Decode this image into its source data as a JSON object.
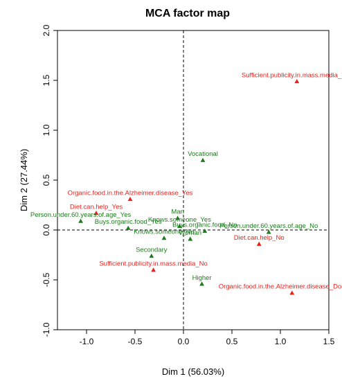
{
  "chart_data": {
    "type": "scatter",
    "title": "MCA factor map",
    "xlabel": "Dim 1 (56.03%)",
    "ylabel": "Dim 2 (27.44%)",
    "xlim": [
      -1.3,
      1.5
    ],
    "ylim": [
      -1.0,
      2.0
    ],
    "xticks": [
      "-1.0",
      "-0.5",
      "0.0",
      "0.5",
      "1.0",
      "1.5"
    ],
    "yticks": [
      "-1.0",
      "-0.5",
      "0.0",
      "0.5",
      "1.0",
      "1.5",
      "2.0"
    ],
    "grid": false,
    "reference_lines": {
      "x": 0,
      "y": 0,
      "style": "dashed"
    },
    "colors": {
      "red": "#e8211c",
      "green": "#1d7a1d"
    },
    "points": [
      {
        "label": "Sufficient.publicity.in.mass.media_Yes",
        "x": 1.17,
        "y": 1.49,
        "color": "red"
      },
      {
        "label": "Vocational",
        "x": 0.2,
        "y": 0.7,
        "color": "green"
      },
      {
        "label": "Organic.food.in.the.Alzheimer.disease_Yes",
        "x": -0.55,
        "y": 0.31,
        "color": "red"
      },
      {
        "label": "Diet.can.help_Yes",
        "x": -0.9,
        "y": 0.17,
        "color": "red"
      },
      {
        "label": "Person.under.60.years.of.age_Yes",
        "x": -1.06,
        "y": 0.09,
        "color": "green"
      },
      {
        "label": "Buys.organic.food_Yes",
        "x": -0.57,
        "y": 0.02,
        "color": "green"
      },
      {
        "label": "Man",
        "x": -0.06,
        "y": 0.12,
        "color": "green"
      },
      {
        "label": "Knows.someone_Yes",
        "x": -0.04,
        "y": 0.04,
        "color": "green"
      },
      {
        "label": "Buys.organic.food_No",
        "x": 0.22,
        "y": -0.01,
        "color": "green"
      },
      {
        "label": "Person.under.60.years.of.age_No",
        "x": 0.88,
        "y": -0.02,
        "color": "green"
      },
      {
        "label": "Knows.someone_No",
        "x": -0.2,
        "y": -0.08,
        "color": "green"
      },
      {
        "label": "Woman",
        "x": 0.07,
        "y": -0.09,
        "color": "green"
      },
      {
        "label": "Diet.can.help_No",
        "x": 0.78,
        "y": -0.14,
        "color": "red"
      },
      {
        "label": "Secondary",
        "x": -0.33,
        "y": -0.26,
        "color": "green"
      },
      {
        "label": "Sufficient.publicity.in.mass.media_No",
        "x": -0.31,
        "y": -0.4,
        "color": "red"
      },
      {
        "label": "Higher",
        "x": 0.19,
        "y": -0.54,
        "color": "green"
      },
      {
        "label": "Organic.food.in.the.Alzheimer.disease_Don't know",
        "x": 1.12,
        "y": -0.63,
        "color": "red"
      }
    ]
  }
}
